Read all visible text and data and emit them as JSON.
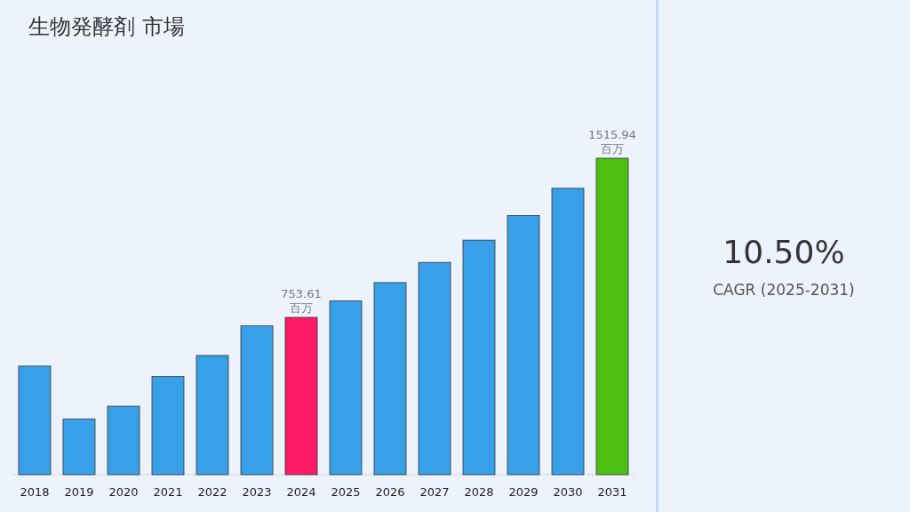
{
  "chart_data": [
    {
      "type": "bar",
      "title": "生物発酵剤 市場",
      "categories": [
        "2018",
        "2019",
        "2020",
        "2021",
        "2022",
        "2023",
        "2024",
        "2025",
        "2026",
        "2027",
        "2028",
        "2029",
        "2030",
        "2031"
      ],
      "values": [
        520,
        267,
        328,
        470,
        571,
        713,
        753.61,
        832.74,
        920.18,
        1016.8,
        1123.56,
        1241.53,
        1371.89,
        1515.94
      ],
      "colors": [
        "#38a0e8",
        "#38a0e8",
        "#38a0e8",
        "#38a0e8",
        "#38a0e8",
        "#38a0e8",
        "#ff1a66",
        "#38a0e8",
        "#38a0e8",
        "#38a0e8",
        "#38a0e8",
        "#38a0e8",
        "#38a0e8",
        "#4cbf10"
      ],
      "value_labels": [
        null,
        null,
        null,
        null,
        null,
        null,
        "753.61\n百万",
        null,
        null,
        null,
        null,
        null,
        null,
        "1515.94\n百万"
      ]
    },
    {
      "type": "other",
      "title": "10.50%",
      "subtitle": "CAGR (2025-2031)"
    }
  ]
}
